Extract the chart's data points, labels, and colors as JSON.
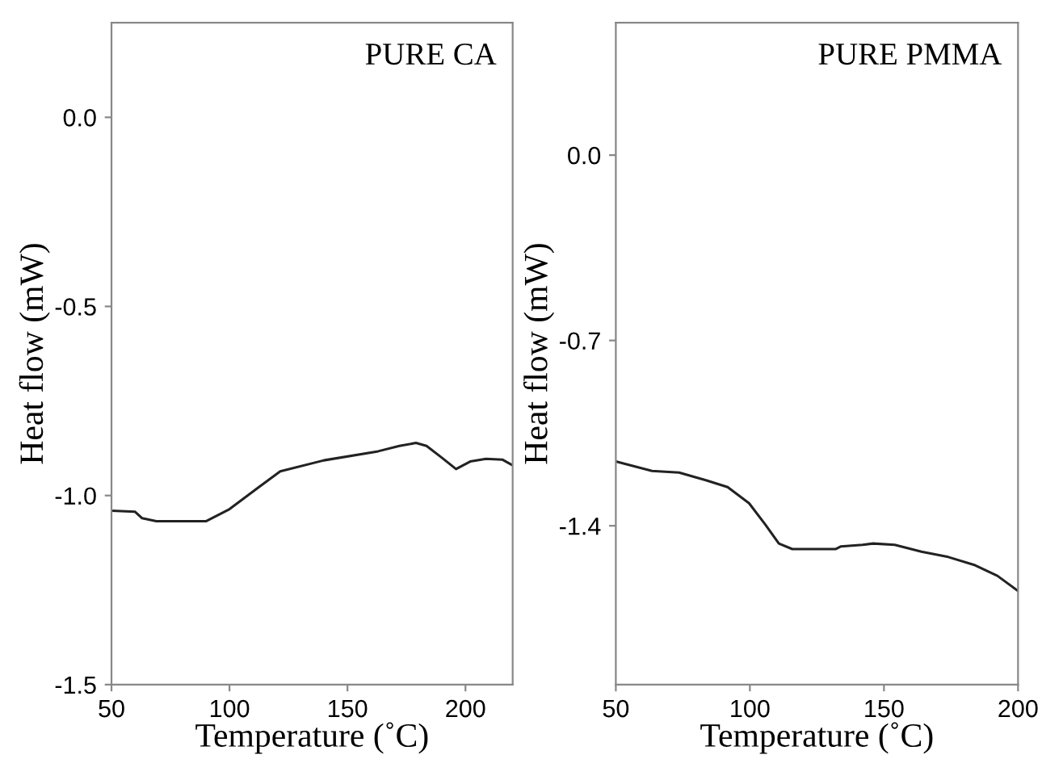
{
  "chart_data": [
    {
      "type": "line",
      "xlabel": "Temperature (˚C)",
      "ylabel": "Heat flow (mW)",
      "annotations": [
        "PURE CA"
      ],
      "xlim": [
        50,
        220
      ],
      "ylim": [
        -1.5,
        0.25
      ],
      "xticks": [
        50,
        100,
        150,
        200
      ],
      "yticks": [
        {
          "value": -1.5,
          "label": "-1.5"
        },
        {
          "value": -1.0,
          "label": "-1.0"
        },
        {
          "value": -0.5,
          "label": "-0.5"
        },
        {
          "value": 0.0,
          "label": "0.0"
        }
      ],
      "grid": false,
      "legend": false,
      "series": [
        {
          "color": "#222222",
          "x": [
            50,
            60,
            63,
            69,
            90,
            100,
            112,
            121.5,
            140,
            163,
            172,
            179,
            183.5,
            190,
            196,
            202,
            208.7,
            215.6,
            220
          ],
          "values": [
            -1.04,
            -1.043,
            -1.06,
            -1.068,
            -1.068,
            -1.036,
            -0.98,
            -0.936,
            -0.907,
            -0.883,
            -0.869,
            -0.861,
            -0.869,
            -0.9,
            -0.93,
            -0.91,
            -0.903,
            -0.905,
            -0.92
          ]
        }
      ]
    },
    {
      "type": "line",
      "xlabel": "Temperature (˚C)",
      "ylabel": "Heat flow (mW)",
      "annotations": [
        "PURE PMMA"
      ],
      "xlim": [
        50,
        200
      ],
      "ylim": [
        -2.0,
        0.5
      ],
      "xticks": [
        50,
        100,
        150,
        200
      ],
      "yticks": [
        {
          "value": -1.4,
          "label": "-1.4"
        },
        {
          "value": -0.7,
          "label": "-0.7"
        },
        {
          "value": 0.0,
          "label": "0.0"
        }
      ],
      "grid": false,
      "legend": false,
      "series": [
        {
          "color": "#222222",
          "x": [
            50,
            63.5,
            73.6,
            83.6,
            91.7,
            99.7,
            105.8,
            110.8,
            115.8,
            131.9,
            134,
            142,
            146,
            154,
            164,
            174,
            184,
            192.3,
            200
          ],
          "values": [
            -1.157,
            -1.193,
            -1.199,
            -1.228,
            -1.254,
            -1.315,
            -1.396,
            -1.467,
            -1.488,
            -1.488,
            -1.478,
            -1.472,
            -1.467,
            -1.472,
            -1.498,
            -1.518,
            -1.549,
            -1.589,
            -1.646
          ]
        }
      ]
    }
  ]
}
